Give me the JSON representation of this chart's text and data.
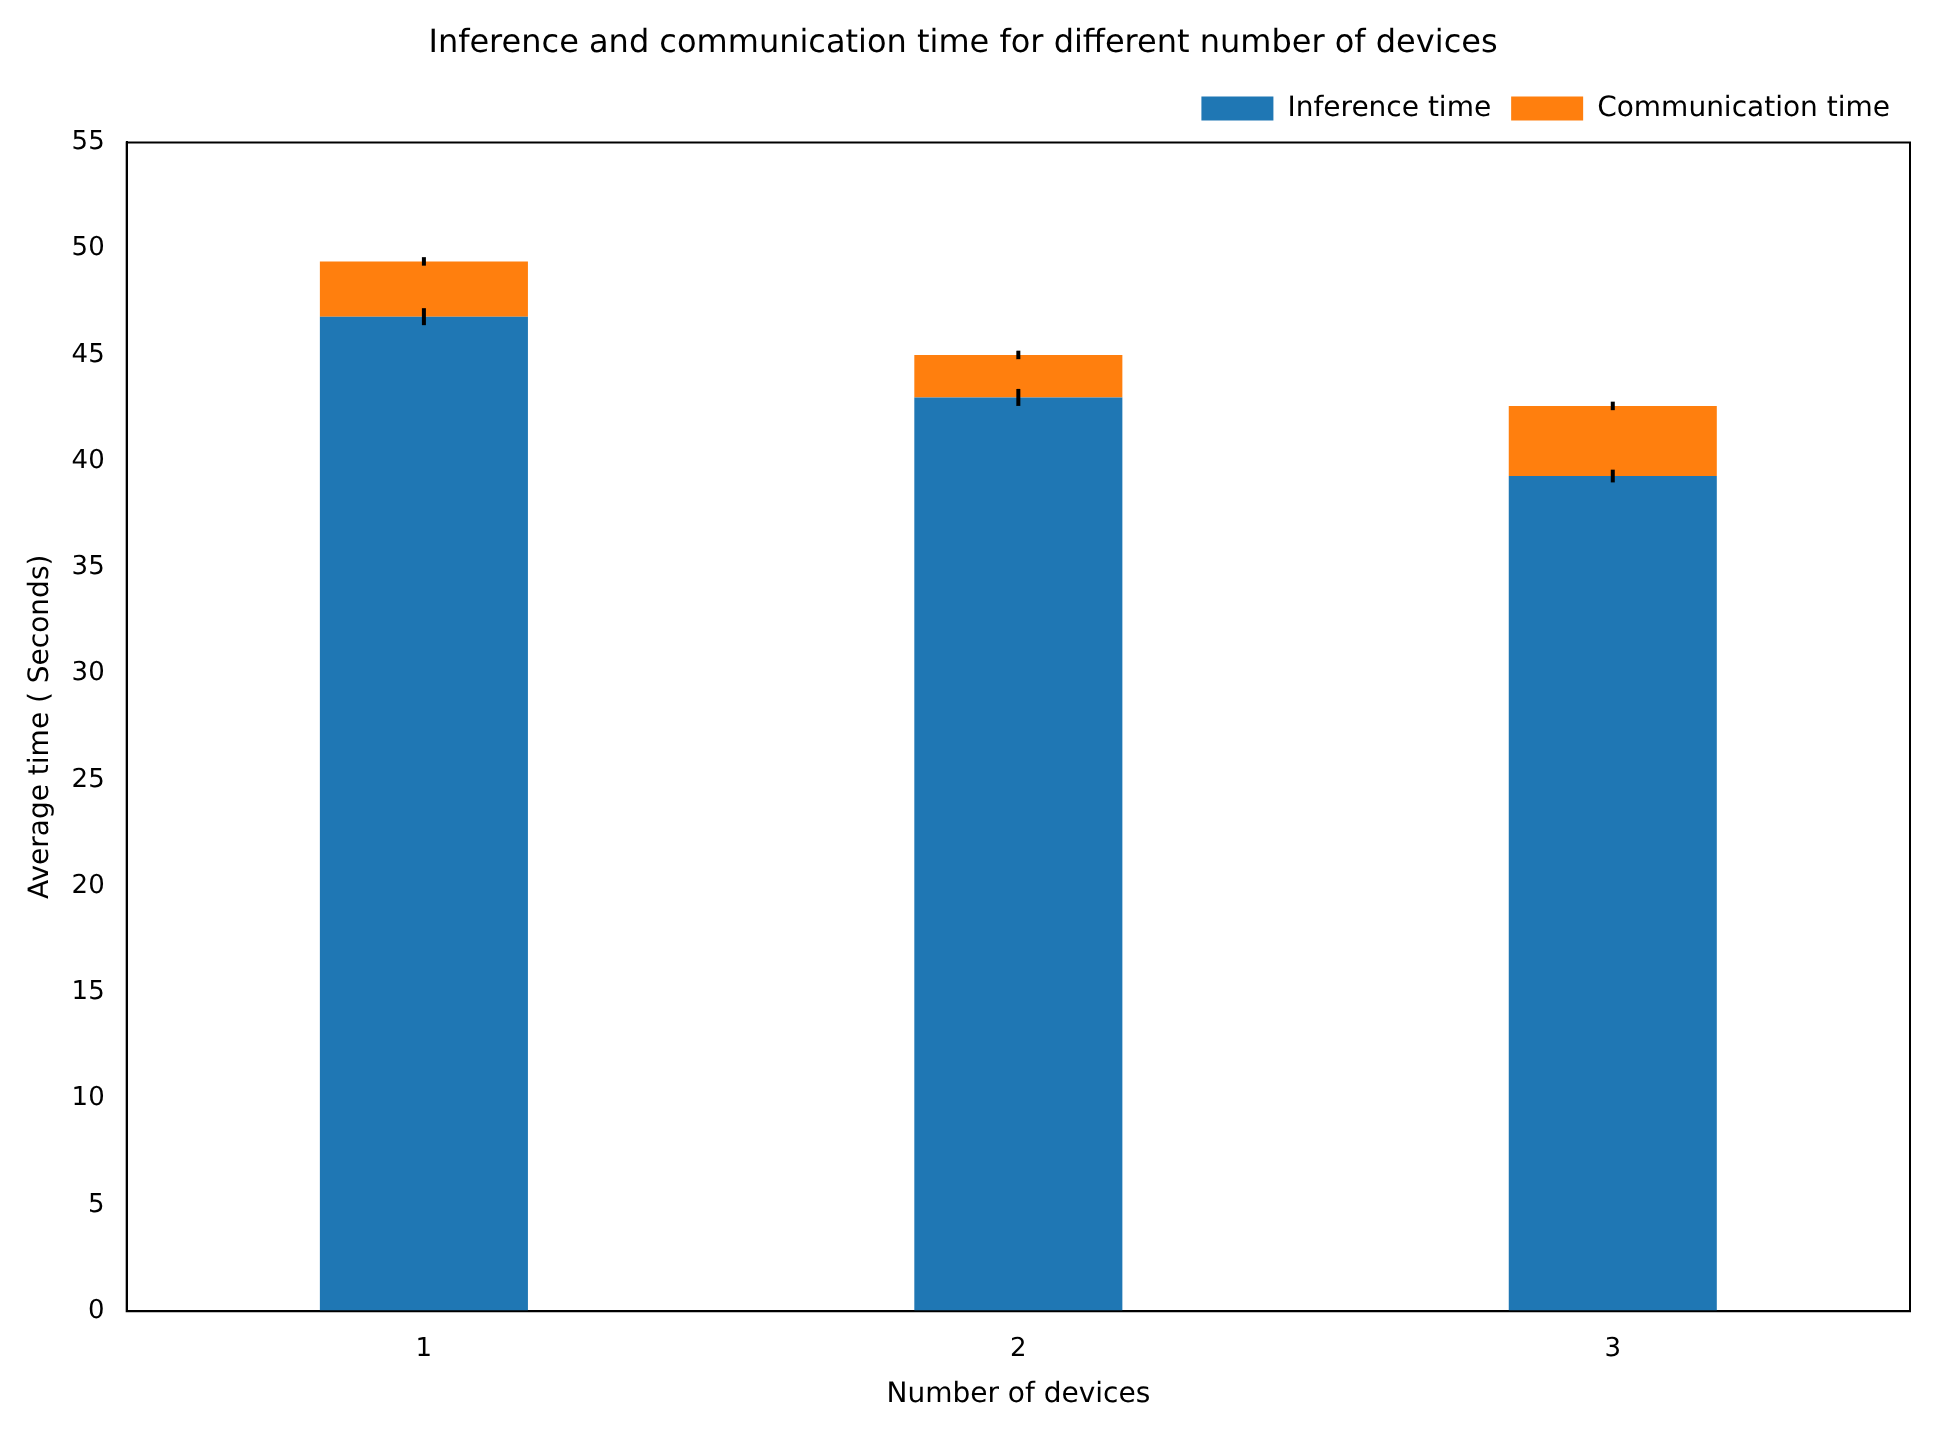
{
  "chart_data": {
    "type": "bar",
    "title": "Inference and communication time for different number of devices",
    "xlabel": "Number of devices",
    "ylabel": "Average time ( Seconds)",
    "categories": [
      "1",
      "2",
      "3"
    ],
    "stacked": true,
    "series": [
      {
        "name": "Inference time",
        "color": "#1f77b4",
        "values": [
          46.8,
          43.0,
          39.3
        ],
        "errors": [
          0.4,
          0.4,
          0.3
        ]
      },
      {
        "name": "Communication time",
        "color": "#ff7f0e",
        "values": [
          2.6,
          2.0,
          3.3
        ],
        "errors": [
          0.2,
          0.2,
          0.2
        ]
      }
    ],
    "ylim": [
      0,
      55
    ],
    "yticks": [
      0,
      5,
      10,
      15,
      20,
      25,
      30,
      35,
      40,
      45,
      50,
      55
    ],
    "grid": false,
    "legend": "top right"
  }
}
